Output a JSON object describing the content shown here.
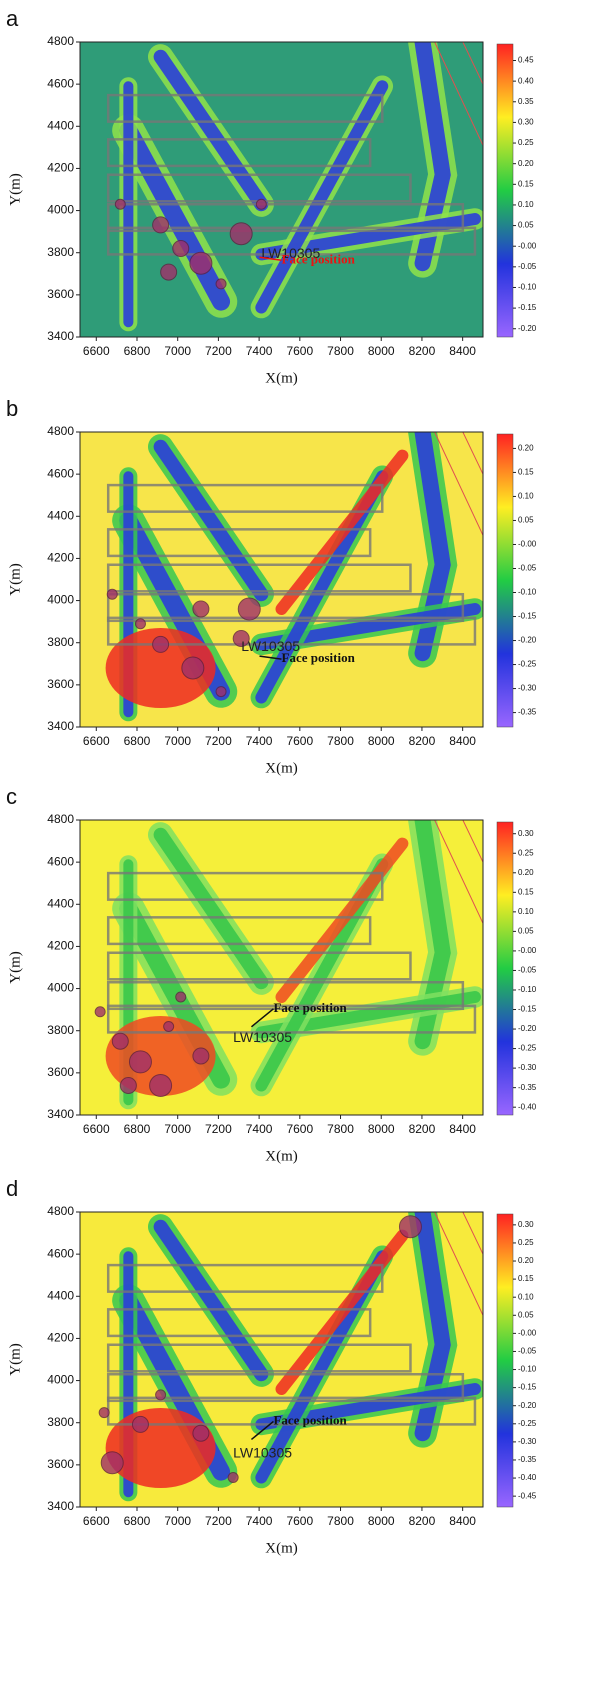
{
  "chart_data": [
    {
      "type": "heatmap",
      "panel_label": "a",
      "xlabel": "X(m)",
      "ylabel": "Y(m)",
      "xlim": [
        6520,
        8500
      ],
      "xticks": [
        6600,
        6800,
        7000,
        7200,
        7400,
        7600,
        7800,
        8000,
        8200,
        8400
      ],
      "ylim": [
        3400,
        4800
      ],
      "yticks": [
        3400,
        3600,
        3800,
        4000,
        4200,
        4400,
        4600,
        4800
      ],
      "background_color": "#2f9c78",
      "colorbar": {
        "lim": [
          -0.22,
          0.49
        ],
        "colors": [
          "#9966ff",
          "#2233dd",
          "#22cc44",
          "#ffee22",
          "#ff2222"
        ],
        "ticks": [
          {
            "value": 0.45,
            "label": "0.45"
          },
          {
            "value": 0.4,
            "label": "0.40"
          },
          {
            "value": 0.35,
            "label": "0.35"
          },
          {
            "value": 0.3,
            "label": "0.30"
          },
          {
            "value": 0.25,
            "label": "0.25"
          },
          {
            "value": 0.2,
            "label": "0.20"
          },
          {
            "value": 0.15,
            "label": "0.15"
          },
          {
            "value": 0.1,
            "label": "0.10"
          },
          {
            "value": 0.05,
            "label": "0.05"
          },
          {
            "value": 0,
            "label": "-0.00"
          },
          {
            "value": -0.05,
            "label": "-0.05"
          },
          {
            "value": -0.1,
            "label": "-0.10"
          },
          {
            "value": -0.15,
            "label": "-0.15"
          },
          {
            "value": -0.2,
            "label": "-0.20"
          }
        ]
      },
      "annotations": [
        "LW10305",
        "Face position"
      ],
      "annotation_color": "#ee1111"
    },
    {
      "type": "heatmap",
      "panel_label": "b",
      "xlabel": "X(m)",
      "ylabel": "Y(m)",
      "xlim": [
        6520,
        8500
      ],
      "xticks": [
        6600,
        6800,
        7000,
        7200,
        7400,
        7600,
        7800,
        8000,
        8200,
        8400
      ],
      "ylim": [
        3400,
        4800
      ],
      "yticks": [
        3400,
        3600,
        3800,
        4000,
        4200,
        4400,
        4600,
        4800
      ],
      "background_color": "#f7e54a",
      "colorbar": {
        "lim": [
          -0.38,
          0.23
        ],
        "colors": [
          "#9966ff",
          "#2233dd",
          "#22cc44",
          "#ffee22",
          "#ff2222"
        ],
        "ticks": [
          {
            "value": 0.2,
            "label": "0.20"
          },
          {
            "value": 0.15,
            "label": "0.15"
          },
          {
            "value": 0.1,
            "label": "0.10"
          },
          {
            "value": 0.05,
            "label": "0.05"
          },
          {
            "value": 0,
            "label": "-0.00"
          },
          {
            "value": -0.05,
            "label": "-0.05"
          },
          {
            "value": -0.1,
            "label": "-0.10"
          },
          {
            "value": -0.15,
            "label": "-0.15"
          },
          {
            "value": -0.2,
            "label": "-0.20"
          },
          {
            "value": -0.25,
            "label": "-0.25"
          },
          {
            "value": -0.3,
            "label": "-0.30"
          },
          {
            "value": -0.35,
            "label": "-0.35"
          }
        ]
      },
      "annotations": [
        "LW10305",
        "Face position"
      ],
      "annotation_color": "#111111"
    },
    {
      "type": "heatmap",
      "panel_label": "c",
      "xlabel": "X(m)",
      "ylabel": "Y(m)",
      "xlim": [
        6520,
        8500
      ],
      "xticks": [
        6600,
        6800,
        7000,
        7200,
        7400,
        7600,
        7800,
        8000,
        8200,
        8400
      ],
      "ylim": [
        3400,
        4800
      ],
      "yticks": [
        3400,
        3600,
        3800,
        4000,
        4200,
        4400,
        4600,
        4800
      ],
      "background_color": "#f5ef3a",
      "colorbar": {
        "lim": [
          -0.42,
          0.33
        ],
        "colors": [
          "#9966ff",
          "#2233dd",
          "#22cc44",
          "#ffee22",
          "#ff2222"
        ],
        "ticks": [
          {
            "value": 0.3,
            "label": "0.30"
          },
          {
            "value": 0.25,
            "label": "0.25"
          },
          {
            "value": 0.2,
            "label": "0.20"
          },
          {
            "value": 0.15,
            "label": "0.15"
          },
          {
            "value": 0.1,
            "label": "0.10"
          },
          {
            "value": 0.05,
            "label": "0.05"
          },
          {
            "value": 0,
            "label": "-0.00"
          },
          {
            "value": -0.05,
            "label": "-0.05"
          },
          {
            "value": -0.1,
            "label": "-0.10"
          },
          {
            "value": -0.15,
            "label": "-0.15"
          },
          {
            "value": -0.2,
            "label": "-0.20"
          },
          {
            "value": -0.25,
            "label": "-0.25"
          },
          {
            "value": -0.3,
            "label": "-0.30"
          },
          {
            "value": -0.35,
            "label": "-0.35"
          },
          {
            "value": -0.4,
            "label": "-0.40"
          }
        ]
      },
      "annotations": [
        "LW10305",
        "Face position"
      ],
      "annotation_color": "#111111"
    },
    {
      "type": "heatmap",
      "panel_label": "d",
      "xlabel": "X(m)",
      "ylabel": "Y(m)",
      "xlim": [
        6520,
        8500
      ],
      "xticks": [
        6600,
        6800,
        7000,
        7200,
        7400,
        7600,
        7800,
        8000,
        8200,
        8400
      ],
      "ylim": [
        3400,
        4800
      ],
      "yticks": [
        3400,
        3600,
        3800,
        4000,
        4200,
        4400,
        4600,
        4800
      ],
      "background_color": "#f7ea3c",
      "colorbar": {
        "lim": [
          -0.48,
          0.33
        ],
        "colors": [
          "#9966ff",
          "#2233dd",
          "#22cc44",
          "#ffee22",
          "#ff2222"
        ],
        "ticks": [
          {
            "value": 0.3,
            "label": "0.30"
          },
          {
            "value": 0.25,
            "label": "0.25"
          },
          {
            "value": 0.2,
            "label": "0.20"
          },
          {
            "value": 0.15,
            "label": "0.15"
          },
          {
            "value": 0.1,
            "label": "0.10"
          },
          {
            "value": 0.05,
            "label": "0.05"
          },
          {
            "value": 0,
            "label": "-0.00"
          },
          {
            "value": -0.05,
            "label": "-0.05"
          },
          {
            "value": -0.1,
            "label": "-0.10"
          },
          {
            "value": -0.15,
            "label": "-0.15"
          },
          {
            "value": -0.2,
            "label": "-0.20"
          },
          {
            "value": -0.25,
            "label": "-0.25"
          },
          {
            "value": -0.3,
            "label": "-0.30"
          },
          {
            "value": -0.35,
            "label": "-0.35"
          },
          {
            "value": -0.4,
            "label": "-0.40"
          },
          {
            "value": -0.45,
            "label": "-0.45"
          }
        ]
      },
      "annotations": [
        "LW10305",
        "Face position"
      ],
      "annotation_color": "#111111"
    }
  ]
}
